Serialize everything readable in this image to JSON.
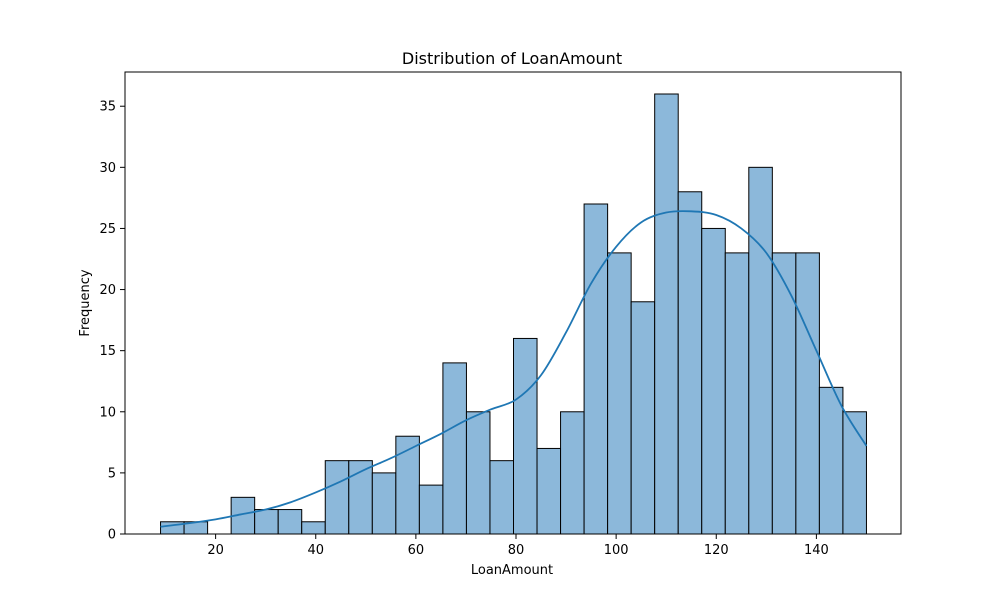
{
  "chart_data": {
    "type": "bar",
    "title": "Distribution of LoanAmount",
    "xlabel": "LoanAmount",
    "ylabel": "Frequency",
    "xlim": [
      1.9,
      156.9
    ],
    "ylim": [
      0,
      37.8
    ],
    "x_ticks": [
      20,
      40,
      60,
      80,
      100,
      120,
      140
    ],
    "y_ticks": [
      0,
      5,
      10,
      15,
      20,
      25,
      30,
      35
    ],
    "grid": false,
    "legend": "none",
    "bar_color": "#8cb8da",
    "bar_edge_color": "#000000",
    "line_color": "#1f77b4",
    "bins": {
      "start": 9,
      "width": 4.7,
      "counts": [
        1,
        1,
        0,
        3,
        2,
        2,
        1,
        6,
        6,
        5,
        8,
        4,
        14,
        10,
        6,
        16,
        7,
        10,
        27,
        23,
        19,
        36,
        28,
        25,
        23,
        30,
        23,
        23,
        12,
        10
      ]
    },
    "kde": {
      "x": [
        9,
        15,
        20,
        25,
        30,
        35,
        40,
        45,
        50,
        55,
        60,
        65,
        70,
        75,
        80,
        85,
        90,
        95,
        100,
        105,
        110,
        115,
        120,
        125,
        130,
        135,
        140,
        145,
        150
      ],
      "y": [
        0.6,
        0.9,
        1.2,
        1.6,
        2.0,
        2.6,
        3.4,
        4.3,
        5.3,
        6.2,
        7.2,
        8.2,
        9.3,
        10.2,
        11.0,
        13.0,
        16.5,
        20.5,
        23.5,
        25.5,
        26.3,
        26.4,
        26.1,
        25.0,
        23.0,
        19.5,
        15.0,
        10.5,
        7.2
      ]
    }
  }
}
